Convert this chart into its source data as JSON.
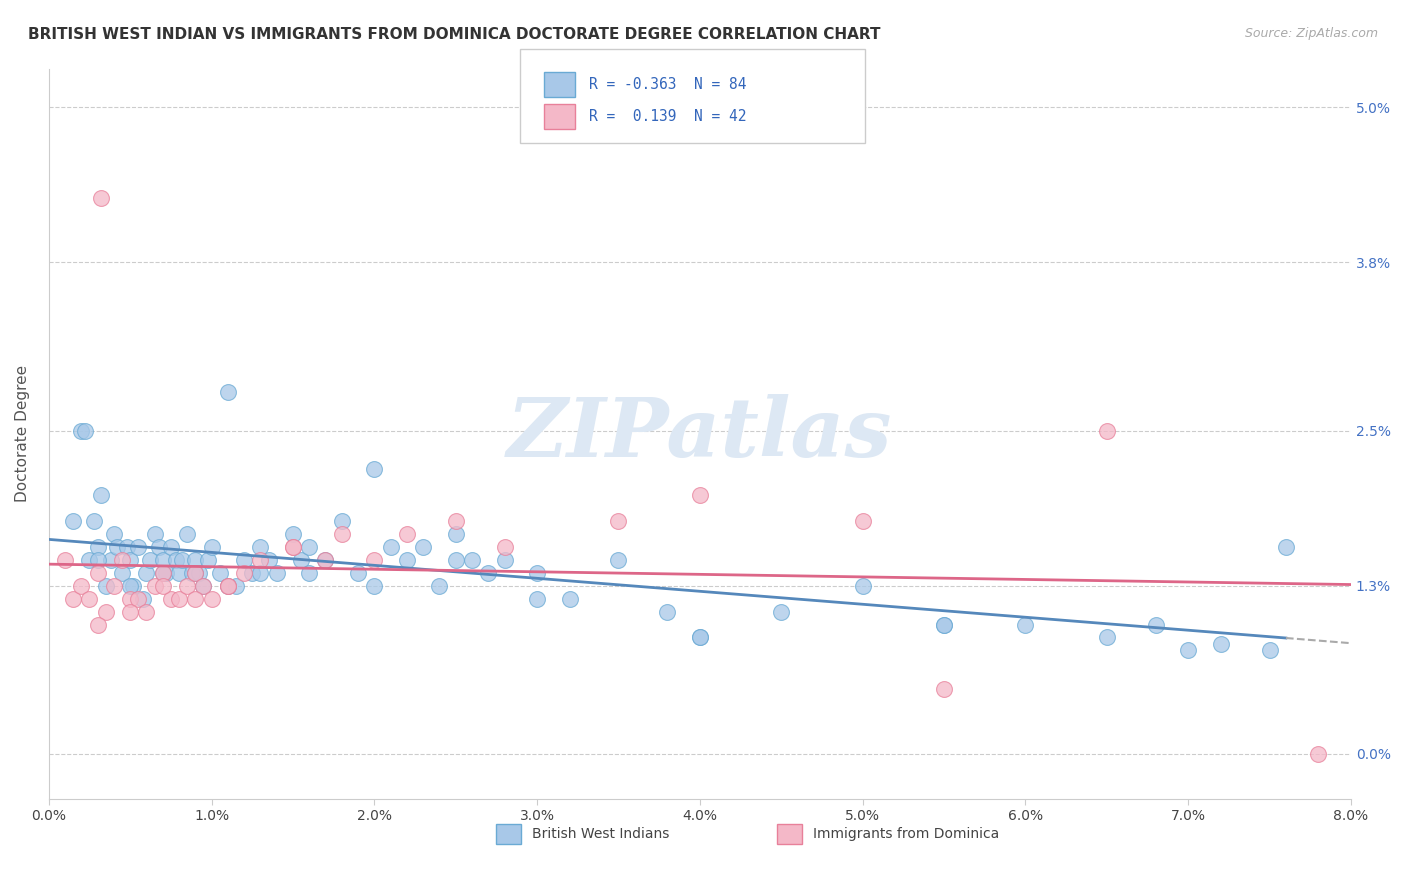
{
  "title": "BRITISH WEST INDIAN VS IMMIGRANTS FROM DOMINICA DOCTORATE DEGREE CORRELATION CHART",
  "source": "Source: ZipAtlas.com",
  "ylabel_label": "Doctorate Degree",
  "legend_label1": "British West Indians",
  "legend_label2": "Immigrants from Dominica",
  "R1": -0.363,
  "N1": 84,
  "R2": 0.139,
  "N2": 42,
  "color_blue": "#a8c8e8",
  "color_pink": "#f4b8c8",
  "line_blue": "#6aaad4",
  "line_pink": "#e8809a",
  "regression_blue": "#5588bb",
  "regression_pink": "#dd6688",
  "watermark": "ZIPatlas",
  "xmin": 0.0,
  "xmax": 8.0,
  "ymin": -0.35,
  "ymax": 5.3,
  "ytick_vals": [
    0.0,
    1.3,
    2.5,
    3.8,
    5.0
  ],
  "xtick_vals": [
    0.0,
    1.0,
    2.0,
    3.0,
    4.0,
    5.0,
    6.0,
    7.0,
    8.0
  ],
  "blue_scatter_x": [
    0.15,
    0.2,
    0.22,
    0.25,
    0.28,
    0.3,
    0.32,
    0.35,
    0.38,
    0.4,
    0.42,
    0.45,
    0.48,
    0.5,
    0.52,
    0.55,
    0.58,
    0.6,
    0.62,
    0.65,
    0.68,
    0.7,
    0.72,
    0.75,
    0.78,
    0.8,
    0.82,
    0.85,
    0.88,
    0.9,
    0.92,
    0.95,
    0.98,
    1.0,
    1.05,
    1.1,
    1.15,
    1.2,
    1.25,
    1.3,
    1.35,
    1.4,
    1.5,
    1.55,
    1.6,
    1.7,
    1.8,
    1.9,
    2.0,
    2.1,
    2.2,
    2.3,
    2.4,
    2.5,
    2.6,
    2.7,
    2.8,
    3.0,
    3.2,
    3.5,
    3.8,
    4.0,
    4.5,
    5.0,
    5.5,
    6.0,
    6.5,
    7.0,
    7.5,
    0.3,
    0.5,
    0.7,
    0.9,
    1.1,
    1.3,
    1.6,
    2.0,
    2.5,
    3.0,
    4.0,
    5.5,
    6.8,
    7.2,
    7.6
  ],
  "blue_scatter_y": [
    1.8,
    2.5,
    2.5,
    1.5,
    1.8,
    1.6,
    2.0,
    1.3,
    1.5,
    1.7,
    1.6,
    1.4,
    1.6,
    1.5,
    1.3,
    1.6,
    1.2,
    1.4,
    1.5,
    1.7,
    1.6,
    1.5,
    1.4,
    1.6,
    1.5,
    1.4,
    1.5,
    1.7,
    1.4,
    1.5,
    1.4,
    1.3,
    1.5,
    1.6,
    1.4,
    2.8,
    1.3,
    1.5,
    1.4,
    1.6,
    1.5,
    1.4,
    1.7,
    1.5,
    1.6,
    1.5,
    1.8,
    1.4,
    2.2,
    1.6,
    1.5,
    1.6,
    1.3,
    1.7,
    1.5,
    1.4,
    1.5,
    1.4,
    1.2,
    1.5,
    1.1,
    0.9,
    1.1,
    1.3,
    1.0,
    1.0,
    0.9,
    0.8,
    0.8,
    1.5,
    1.3,
    1.4,
    1.4,
    1.3,
    1.4,
    1.4,
    1.3,
    1.5,
    1.2,
    0.9,
    1.0,
    1.0,
    0.85,
    1.6
  ],
  "pink_scatter_x": [
    0.1,
    0.15,
    0.2,
    0.25,
    0.3,
    0.32,
    0.35,
    0.4,
    0.45,
    0.5,
    0.55,
    0.6,
    0.65,
    0.7,
    0.75,
    0.8,
    0.85,
    0.9,
    0.95,
    1.0,
    1.1,
    1.2,
    1.3,
    1.5,
    1.7,
    1.8,
    2.0,
    2.2,
    2.5,
    2.8,
    3.5,
    4.0,
    5.0,
    5.5,
    6.5,
    0.3,
    0.5,
    0.7,
    0.9,
    1.1,
    1.5,
    7.8
  ],
  "pink_scatter_y": [
    1.5,
    1.2,
    1.3,
    1.2,
    1.4,
    4.3,
    1.1,
    1.3,
    1.5,
    1.2,
    1.2,
    1.1,
    1.3,
    1.4,
    1.2,
    1.2,
    1.3,
    1.4,
    1.3,
    1.2,
    1.3,
    1.4,
    1.5,
    1.6,
    1.5,
    1.7,
    1.5,
    1.7,
    1.8,
    1.6,
    1.8,
    2.0,
    1.8,
    0.5,
    2.5,
    1.0,
    1.1,
    1.3,
    1.2,
    1.3,
    1.6,
    0.0
  ]
}
